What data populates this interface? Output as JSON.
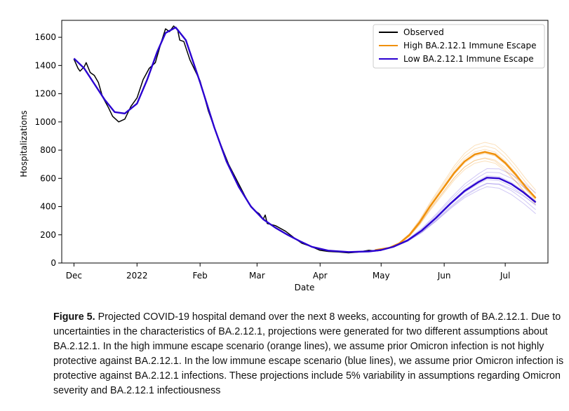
{
  "chart_data": {
    "type": "line",
    "xlabel": "Date",
    "ylabel": "Hospitalizations",
    "ylim": [
      0,
      1720
    ],
    "xlim": [
      "2021-11-25",
      "2022-07-22"
    ],
    "y_ticks": [
      0,
      200,
      400,
      600,
      800,
      1000,
      1200,
      1400,
      1600
    ],
    "x_ticks": [
      {
        "date": "2021-12-01",
        "label": "Dec"
      },
      {
        "date": "2022-01-01",
        "label": "2022"
      },
      {
        "date": "2022-02-01",
        "label": "Feb"
      },
      {
        "date": "2022-03-01",
        "label": "Mar"
      },
      {
        "date": "2022-04-01",
        "label": "Apr"
      },
      {
        "date": "2022-05-01",
        "label": "May"
      },
      {
        "date": "2022-06-01",
        "label": "Jun"
      },
      {
        "date": "2022-07-01",
        "label": "Jul"
      }
    ],
    "legend": {
      "position": "top-right",
      "entries": [
        {
          "label": "Observed",
          "color": "#000000"
        },
        {
          "label": "High BA.2.12.1 Immune Escape",
          "color": "#f0900a"
        },
        {
          "label": "Low BA.2.12.1 Immune Escape",
          "color": "#2a00d0"
        }
      ]
    },
    "grid": false,
    "series": [
      {
        "name": "Observed",
        "color": "#000000",
        "points": [
          [
            "2021-12-01",
            1445
          ],
          [
            "2021-12-03",
            1380
          ],
          [
            "2021-12-04",
            1360
          ],
          [
            "2021-12-06",
            1390
          ],
          [
            "2021-12-07",
            1420
          ],
          [
            "2021-12-09",
            1350
          ],
          [
            "2021-12-11",
            1330
          ],
          [
            "2021-12-13",
            1280
          ],
          [
            "2021-12-15",
            1180
          ],
          [
            "2021-12-18",
            1100
          ],
          [
            "2021-12-20",
            1040
          ],
          [
            "2021-12-23",
            1000
          ],
          [
            "2021-12-26",
            1020
          ],
          [
            "2021-12-29",
            1110
          ],
          [
            "2022-01-01",
            1170
          ],
          [
            "2022-01-04",
            1300
          ],
          [
            "2022-01-07",
            1380
          ],
          [
            "2022-01-10",
            1420
          ],
          [
            "2022-01-13",
            1570
          ],
          [
            "2022-01-15",
            1660
          ],
          [
            "2022-01-17",
            1640
          ],
          [
            "2022-01-19",
            1680
          ],
          [
            "2022-01-21",
            1650
          ],
          [
            "2022-01-22",
            1580
          ],
          [
            "2022-01-24",
            1570
          ],
          [
            "2022-01-27",
            1440
          ],
          [
            "2022-02-01",
            1290
          ],
          [
            "2022-02-05",
            1080
          ],
          [
            "2022-02-10",
            880
          ],
          [
            "2022-02-15",
            700
          ],
          [
            "2022-02-20",
            560
          ],
          [
            "2022-02-25",
            420
          ],
          [
            "2022-02-28",
            370
          ],
          [
            "2022-03-02",
            350
          ],
          [
            "2022-03-04",
            310
          ],
          [
            "2022-03-05",
            340
          ],
          [
            "2022-03-06",
            280
          ],
          [
            "2022-03-10",
            265
          ],
          [
            "2022-03-15",
            225
          ],
          [
            "2022-03-20",
            170
          ],
          [
            "2022-03-23",
            140
          ],
          [
            "2022-03-25",
            130
          ],
          [
            "2022-03-28",
            115
          ],
          [
            "2022-04-01",
            90
          ],
          [
            "2022-04-05",
            82
          ],
          [
            "2022-04-10",
            78
          ],
          [
            "2022-04-15",
            72
          ],
          [
            "2022-04-20",
            78
          ],
          [
            "2022-04-25",
            90
          ],
          [
            "2022-04-28",
            85
          ],
          [
            "2022-05-01",
            90
          ]
        ]
      },
      {
        "name": "High BA.2.12.1 Immune Escape",
        "color": "#f0900a",
        "points": [
          [
            "2022-04-28",
            92
          ],
          [
            "2022-05-05",
            108
          ],
          [
            "2022-05-10",
            140
          ],
          [
            "2022-05-15",
            200
          ],
          [
            "2022-05-20",
            290
          ],
          [
            "2022-05-25",
            400
          ],
          [
            "2022-06-01",
            540
          ],
          [
            "2022-06-06",
            640
          ],
          [
            "2022-06-11",
            720
          ],
          [
            "2022-06-16",
            770
          ],
          [
            "2022-06-21",
            788
          ],
          [
            "2022-06-26",
            770
          ],
          [
            "2022-07-01",
            710
          ],
          [
            "2022-07-06",
            630
          ],
          [
            "2022-07-11",
            540
          ],
          [
            "2022-07-16",
            460
          ]
        ]
      },
      {
        "name": "Low BA.2.12.1 Immune Escape",
        "color": "#2a00d0",
        "points": [
          [
            "2021-12-01",
            1450
          ],
          [
            "2021-12-06",
            1380
          ],
          [
            "2021-12-11",
            1270
          ],
          [
            "2021-12-16",
            1160
          ],
          [
            "2021-12-21",
            1070
          ],
          [
            "2021-12-26",
            1060
          ],
          [
            "2022-01-01",
            1130
          ],
          [
            "2022-01-06",
            1300
          ],
          [
            "2022-01-11",
            1500
          ],
          [
            "2022-01-15",
            1630
          ],
          [
            "2022-01-20",
            1670
          ],
          [
            "2022-01-25",
            1580
          ],
          [
            "2022-02-01",
            1280
          ],
          [
            "2022-02-08",
            960
          ],
          [
            "2022-02-14",
            720
          ],
          [
            "2022-02-20",
            540
          ],
          [
            "2022-02-26",
            400
          ],
          [
            "2022-03-04",
            310
          ],
          [
            "2022-03-10",
            250
          ],
          [
            "2022-03-16",
            200
          ],
          [
            "2022-03-22",
            155
          ],
          [
            "2022-03-28",
            115
          ],
          [
            "2022-04-05",
            88
          ],
          [
            "2022-04-15",
            78
          ],
          [
            "2022-04-25",
            82
          ],
          [
            "2022-05-01",
            92
          ],
          [
            "2022-05-07",
            115
          ],
          [
            "2022-05-14",
            160
          ],
          [
            "2022-05-21",
            230
          ],
          [
            "2022-05-28",
            320
          ],
          [
            "2022-06-04",
            420
          ],
          [
            "2022-06-11",
            510
          ],
          [
            "2022-06-18",
            575
          ],
          [
            "2022-06-22",
            605
          ],
          [
            "2022-06-28",
            600
          ],
          [
            "2022-07-04",
            560
          ],
          [
            "2022-07-10",
            500
          ],
          [
            "2022-07-16",
            430
          ]
        ]
      }
    ],
    "uncertainty_bands": [
      {
        "name": "High BA.2.12.1 Immune Escape",
        "color": "#f0900a",
        "peaks": [
          850,
          830,
          810,
          790,
          770,
          750,
          730,
          715
        ],
        "end_values": [
          490,
          470,
          455,
          440,
          470,
          430,
          480,
          460
        ]
      },
      {
        "name": "Low BA.2.12.1 Immune Escape",
        "color": "#2a00d0",
        "peaks": [
          660,
          640,
          620,
          600,
          580,
          560,
          545
        ],
        "end_values": [
          470,
          450,
          430,
          410,
          390,
          370,
          450
        ]
      }
    ]
  },
  "caption": {
    "label": "Figure 5.",
    "text": "Projected COVID-19 hospital demand over the next 8 weeks, accounting for growth of BA.2.12.1. Due to uncertainties in the characteristics of BA.2.12.1, projections were generated for two different assumptions about BA.2.12.1. In the high immune escape scenario (orange lines), we assume prior Omicron infection is not highly protective against BA.2.12.1. In the low immune escape scenario (blue lines), we assume prior Omicron infection is protective against BA.2.12.1 infections. These projections include 5% variability in assumptions regarding Omicron severity and BA.2.12.1 infectiousness"
  }
}
